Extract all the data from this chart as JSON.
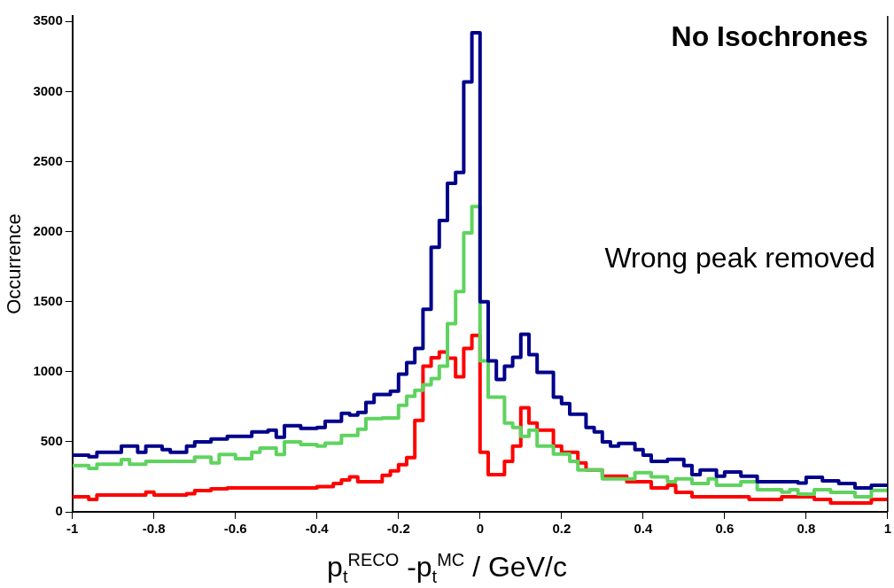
{
  "chart_data": {
    "type": "histogram",
    "xlabel": "p$_{t}$$^{RECO}$ -p$_{t}$$^{MC}$ / GeV/c",
    "ylabel": "Occurrence",
    "annotations": [
      "No Isochrones",
      "Wrong peak removed"
    ],
    "bins": [
      -1,
      -0.98,
      -0.96,
      -0.94,
      -0.92,
      -0.9,
      -0.88,
      -0.86,
      -0.84,
      -0.82,
      -0.8,
      -0.78,
      -0.76,
      -0.74,
      -0.72,
      -0.7,
      -0.68,
      -0.66,
      -0.64,
      -0.62,
      -0.6,
      -0.58,
      -0.56,
      -0.54,
      -0.52,
      -0.5,
      -0.48,
      -0.46,
      -0.44,
      -0.42,
      -0.4,
      -0.38,
      -0.36,
      -0.34,
      -0.32,
      -0.3,
      -0.28,
      -0.26,
      -0.24,
      -0.22,
      -0.2,
      -0.18,
      -0.16,
      -0.14,
      -0.12,
      -0.1,
      -0.08,
      -0.06,
      -0.04,
      -0.02,
      0,
      0.02,
      0.04,
      0.06,
      0.08,
      0.1,
      0.12,
      0.14,
      0.16,
      0.18,
      0.2,
      0.22,
      0.24,
      0.26,
      0.28,
      0.3,
      0.32,
      0.34,
      0.36,
      0.38,
      0.4,
      0.42,
      0.44,
      0.46,
      0.48,
      0.5,
      0.52,
      0.54,
      0.56,
      0.58,
      0.6,
      0.62,
      0.64,
      0.66,
      0.68,
      0.7,
      0.72,
      0.74,
      0.76,
      0.78,
      0.8,
      0.82,
      0.84,
      0.86,
      0.88,
      0.9,
      0.92,
      0.94,
      0.96,
      0.98,
      1
    ],
    "series": [
      {
        "color": "#00008b",
        "values": [
          405,
          405,
          393,
          425,
          425,
          425,
          469,
          469,
          425,
          469,
          469,
          444,
          425,
          425,
          469,
          500,
          500,
          520,
          520,
          539,
          539,
          539,
          570,
          570,
          583,
          532,
          615,
          615,
          596,
          596,
          602,
          647,
          647,
          704,
          690,
          710,
          780,
          837,
          837,
          862,
          983,
          1065,
          1167,
          1446,
          1889,
          2080,
          2346,
          2422,
          3069,
          3420,
          1500,
          1078,
          945,
          1040,
          1103,
          1268,
          1122,
          995,
          995,
          818,
          773,
          697,
          697,
          602,
          570,
          500,
          469,
          488,
          488,
          444,
          405,
          361,
          361,
          374,
          374,
          330,
          266,
          298,
          298,
          254,
          285,
          285,
          254,
          254,
          215,
          215,
          215,
          215,
          215,
          205,
          247,
          247,
          222,
          222,
          203,
          203,
          171,
          171,
          190,
          190
        ]
      },
      {
        "color": "#5fd35f",
        "values": [
          330,
          330,
          310,
          340,
          340,
          340,
          373,
          340,
          340,
          360,
          360,
          360,
          360,
          360,
          360,
          390,
          390,
          350,
          410,
          410,
          380,
          380,
          425,
          455,
          455,
          410,
          500,
          500,
          480,
          480,
          470,
          490,
          490,
          545,
          545,
          590,
          666,
          666,
          670,
          670,
          760,
          825,
          868,
          907,
          951,
          1040,
          1344,
          1572,
          1991,
          2180,
          1078,
          818,
          818,
          634,
          602,
          539,
          583,
          469,
          469,
          412,
          412,
          361,
          298,
          298,
          298,
          235,
          235,
          235,
          235,
          279,
          279,
          250,
          250,
          215,
          235,
          235,
          203,
          203,
          235,
          190,
          190,
          190,
          215,
          215,
          158,
          158,
          158,
          140,
          158,
          127,
          127,
          158,
          158,
          139,
          139,
          139,
          108,
          108,
          153,
          153
        ]
      },
      {
        "color": "#ff0000",
        "values": [
          108,
          108,
          89,
          120,
          120,
          120,
          120,
          120,
          120,
          140,
          120,
          120,
          120,
          120,
          130,
          152,
          152,
          165,
          165,
          171,
          171,
          171,
          171,
          171,
          171,
          171,
          171,
          171,
          171,
          171,
          180,
          180,
          203,
          228,
          250,
          215,
          215,
          215,
          260,
          292,
          336,
          387,
          653,
          1040,
          1100,
          1141,
          1097,
          964,
          1167,
          1260,
          425,
          266,
          266,
          361,
          469,
          742,
          634,
          583,
          583,
          469,
          425,
          425,
          349,
          298,
          298,
          254,
          254,
          254,
          215,
          215,
          215,
          171,
          171,
          190,
          139,
          139,
          108,
          108,
          108,
          108,
          108,
          108,
          108,
          89,
          89,
          89,
          89,
          108,
          108,
          108,
          108,
          89,
          89,
          63,
          63,
          63,
          63,
          63,
          89,
          89
        ]
      }
    ],
    "xlim": [
      -1,
      1
    ],
    "ylim": [
      0,
      3540
    ],
    "xticks": [
      -1,
      -0.8,
      -0.6,
      -0.4,
      -0.2,
      0,
      0.2,
      0.4,
      0.6,
      0.8,
      1
    ],
    "yticks": [
      0,
      500,
      1000,
      1500,
      2000,
      2500,
      3000,
      3500
    ],
    "grid": false,
    "legend": false
  }
}
